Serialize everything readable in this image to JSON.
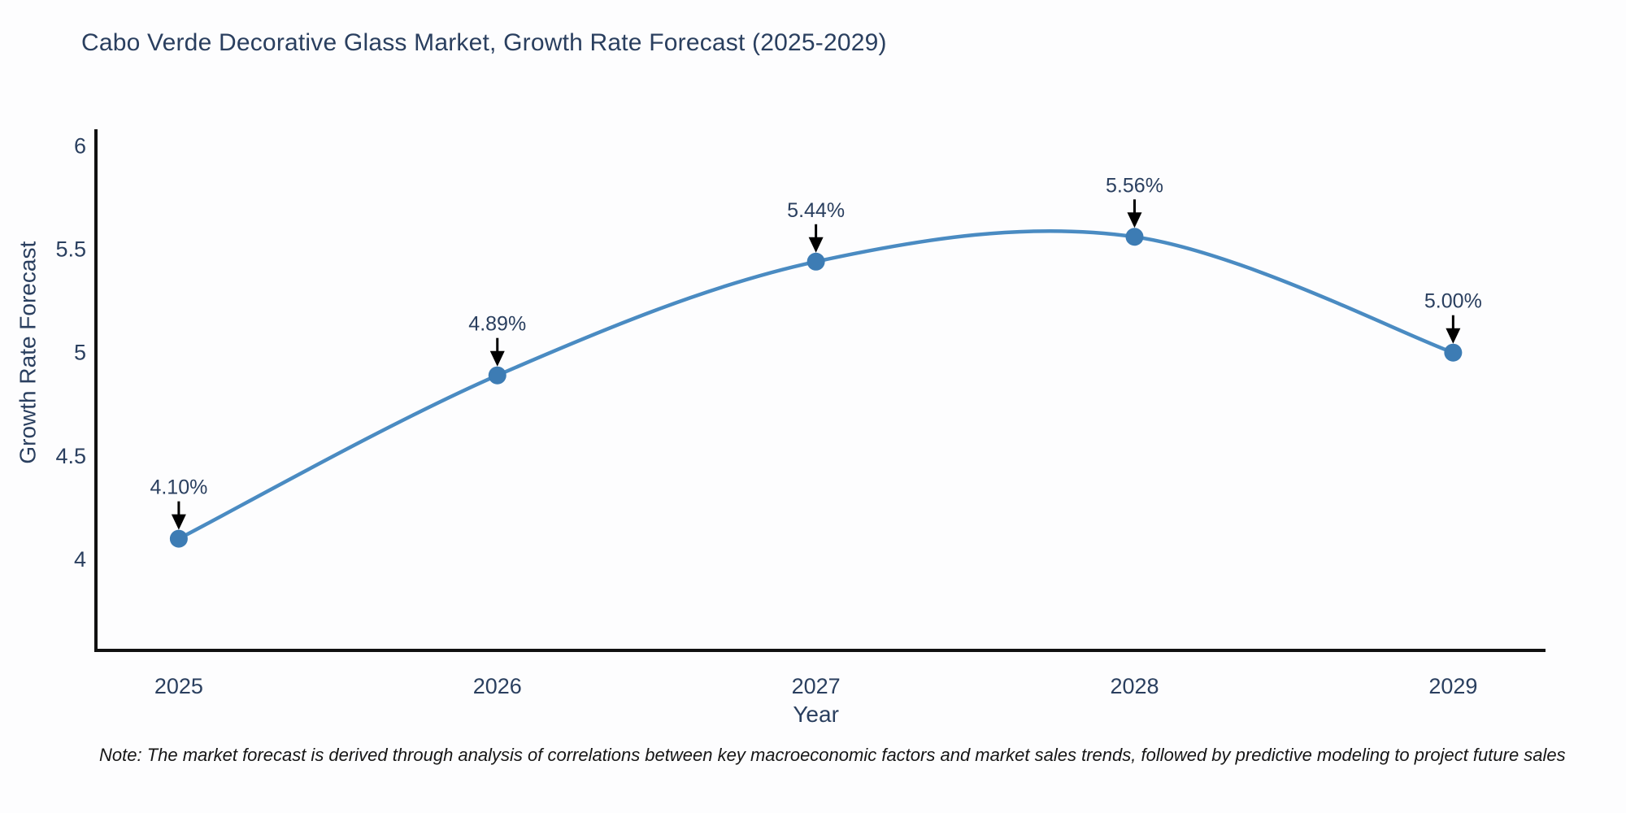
{
  "title": "Cabo Verde Decorative Glass Market, Growth Rate Forecast (2025-2029)",
  "note": "Note: The market forecast is derived through analysis of correlations between key macroeconomic factors and market sales trends, followed by predictive modeling to project future sales",
  "chart_data": {
    "type": "line",
    "title": "Cabo Verde Decorative Glass Market, Growth Rate Forecast (2025-2029)",
    "xlabel": "Year",
    "ylabel": "Growth Rate Forecast",
    "x": [
      2025,
      2026,
      2027,
      2028,
      2029
    ],
    "values": [
      4.1,
      4.89,
      5.44,
      5.56,
      5.0
    ],
    "point_labels": [
      "4.10%",
      "4.89%",
      "5.44%",
      "5.56%",
      "5.00%"
    ],
    "xtick_labels": [
      "2025",
      "2026",
      "2027",
      "2028",
      "2029"
    ],
    "ytick_values": [
      4,
      4.5,
      5,
      5.5,
      6
    ],
    "ytick_labels": [
      "4",
      "4.5",
      "5",
      "5.5",
      "6"
    ],
    "xlim": [
      2024.74,
      2029.29
    ],
    "ylim": [
      3.56,
      6.08
    ],
    "line_shape": "spline",
    "grid": false,
    "legend_position": "none",
    "colors": {
      "line": "#4a8bc2",
      "marker": "#3d7cb4",
      "axis": "#111111",
      "text": "#2a3f5f",
      "arrow": "#000000",
      "background": "#fdfdfe"
    }
  }
}
